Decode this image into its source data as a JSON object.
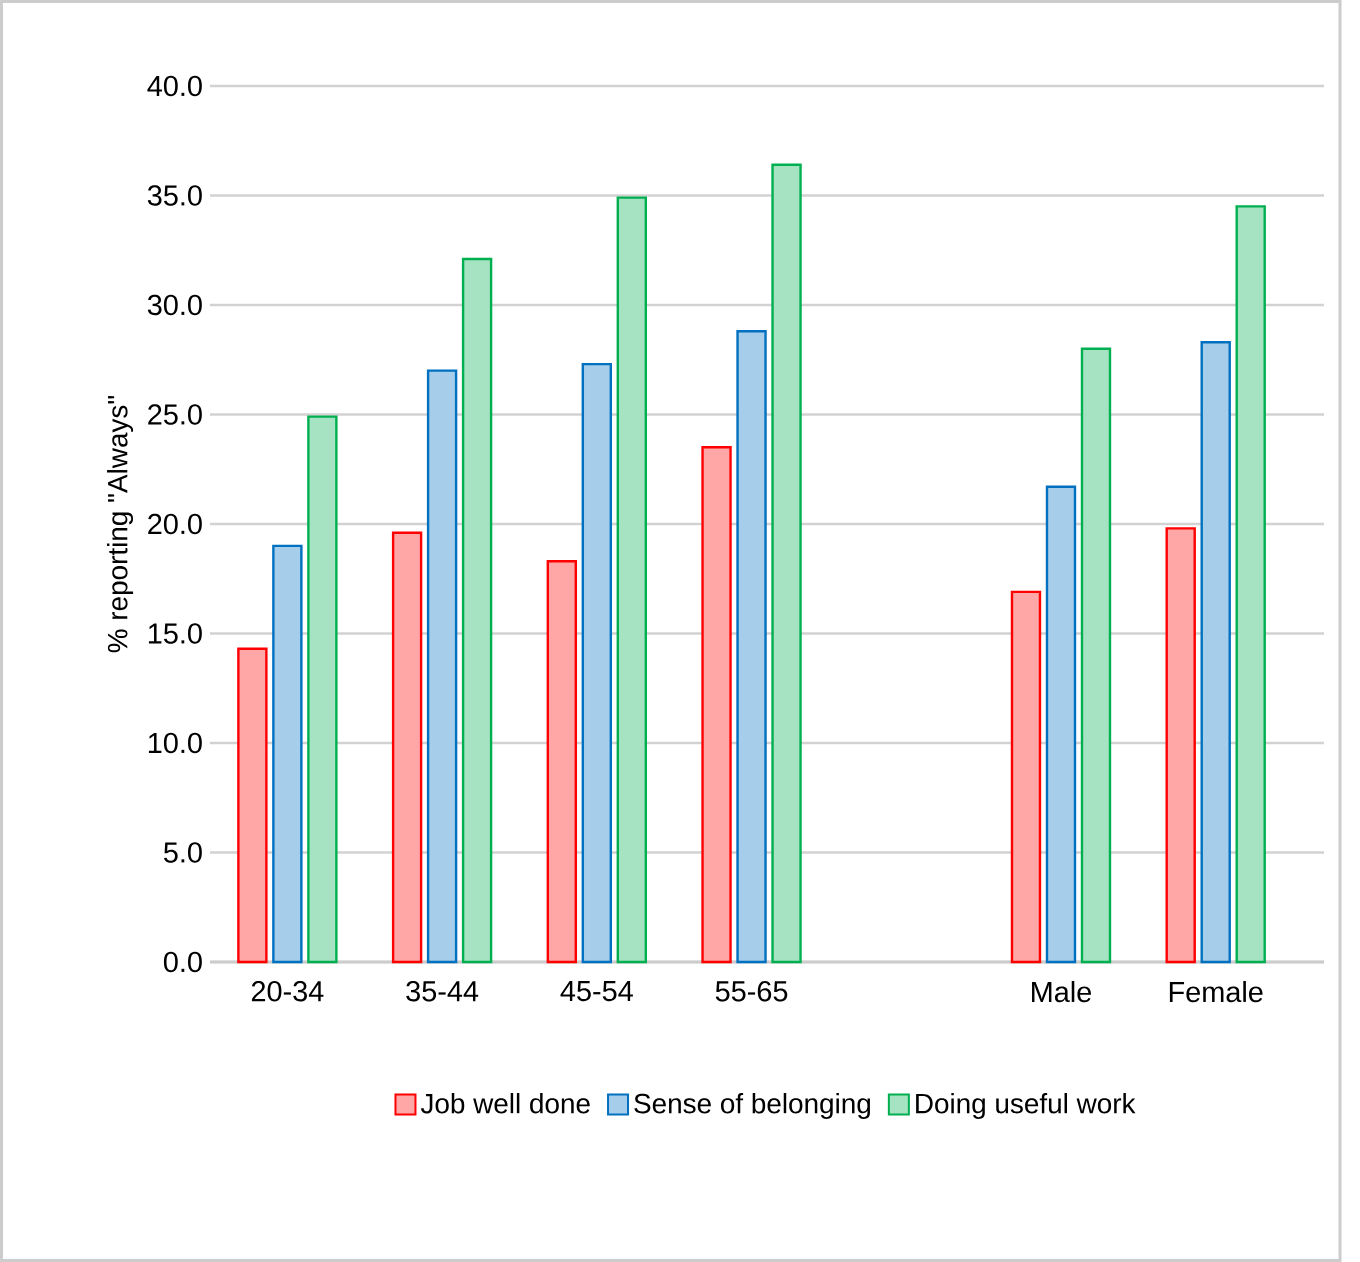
{
  "chart_data": {
    "type": "bar",
    "ylabel": "% reporting \"Always\"",
    "categories": [
      "20-34",
      "35-44",
      "45-54",
      "55-65",
      null,
      "Male",
      "Female"
    ],
    "series": [
      {
        "name": "Job well done",
        "color": "#ff0000",
        "values": [
          14.3,
          19.6,
          18.3,
          23.5,
          null,
          16.9,
          19.8
        ]
      },
      {
        "name": "Sense of belonging",
        "color": "#0070c0",
        "values": [
          19.0,
          27.0,
          27.3,
          28.8,
          null,
          21.7,
          28.3
        ]
      },
      {
        "name": "Doing useful work",
        "color": "#00b050",
        "values": [
          24.9,
          32.1,
          34.9,
          36.4,
          null,
          28.0,
          34.5
        ]
      }
    ],
    "ylim": [
      0,
      40
    ],
    "yticks": [
      {
        "value": 0,
        "label": "0.0"
      },
      {
        "value": 5,
        "label": "5.0"
      },
      {
        "value": 10,
        "label": "10.0"
      },
      {
        "value": 15,
        "label": "15.0"
      },
      {
        "value": 20,
        "label": "20.0"
      },
      {
        "value": 25,
        "label": "25.0"
      },
      {
        "value": 30,
        "label": "30.0"
      },
      {
        "value": 35,
        "label": "35.0"
      },
      {
        "value": 40,
        "label": "40.0"
      }
    ],
    "grid": "y",
    "legend": "bottom"
  }
}
